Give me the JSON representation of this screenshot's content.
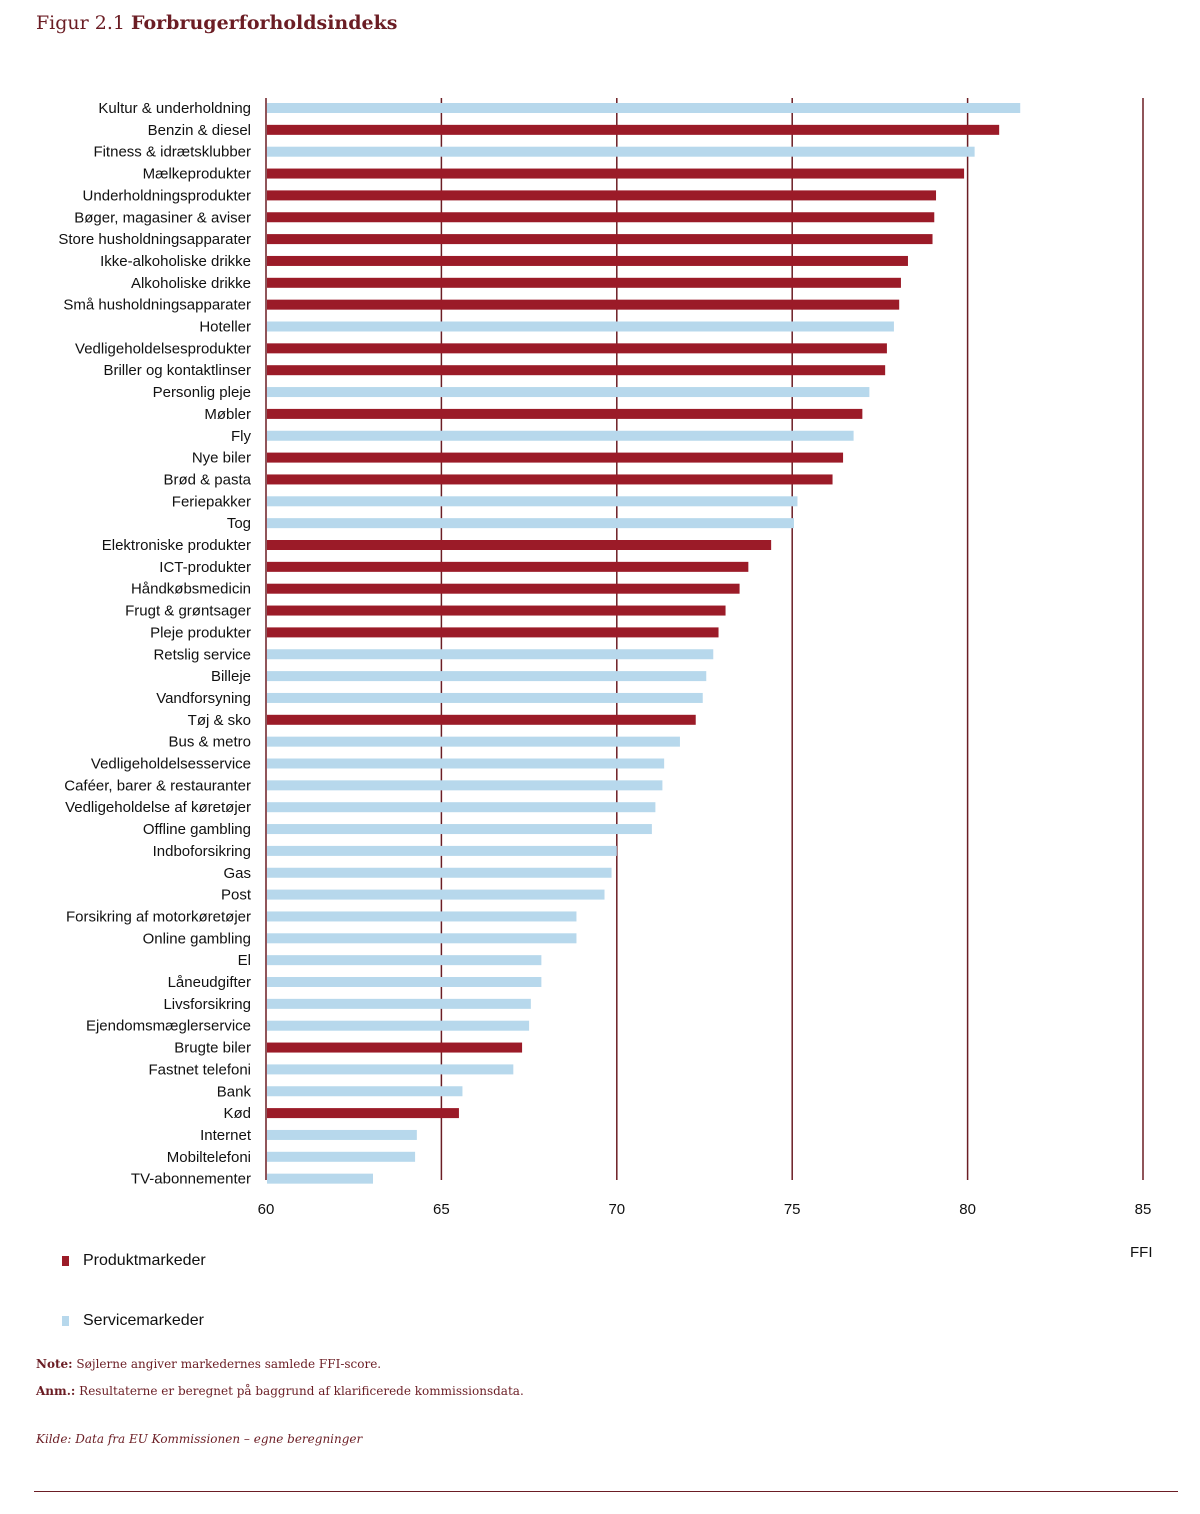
{
  "figure": {
    "number": "Figur 2.1",
    "title": "Forbrugerforholdsindeks"
  },
  "colors": {
    "product": "#9b1b28",
    "service": "#b7d8ec",
    "gridline": "#6b1d24",
    "text": "#111111"
  },
  "chart_data": {
    "type": "bar",
    "orientation": "horizontal",
    "xlim": [
      60,
      85
    ],
    "xticks": [
      60,
      65,
      70,
      75,
      80,
      85
    ],
    "xlabel": "FFI",
    "grid": true,
    "legend_position": "bottom-left",
    "series": [
      {
        "name": "Produktmarkeder",
        "color": "#9b1b28"
      },
      {
        "name": "Servicemarkeder",
        "color": "#b7d8ec"
      }
    ],
    "bars": [
      {
        "label": "Kultur & underholdning",
        "value": 81.5,
        "series": "Servicemarkeder"
      },
      {
        "label": "Benzin & diesel",
        "value": 80.9,
        "series": "Produktmarkeder"
      },
      {
        "label": "Fitness & idrætsklubber",
        "value": 80.2,
        "series": "Servicemarkeder"
      },
      {
        "label": "Mælkeprodukter",
        "value": 79.9,
        "series": "Produktmarkeder"
      },
      {
        "label": "Underholdningsprodukter",
        "value": 79.1,
        "series": "Produktmarkeder"
      },
      {
        "label": "Bøger, magasiner & aviser",
        "value": 79.05,
        "series": "Produktmarkeder"
      },
      {
        "label": "Store husholdningsapparater",
        "value": 79.0,
        "series": "Produktmarkeder"
      },
      {
        "label": "Ikke-alkoholiske drikke",
        "value": 78.3,
        "series": "Produktmarkeder"
      },
      {
        "label": "Alkoholiske drikke",
        "value": 78.1,
        "series": "Produktmarkeder"
      },
      {
        "label": "Små husholdningsapparater",
        "value": 78.05,
        "series": "Produktmarkeder"
      },
      {
        "label": "Hoteller",
        "value": 77.9,
        "series": "Servicemarkeder"
      },
      {
        "label": "Vedligeholdelsesprodukter",
        "value": 77.7,
        "series": "Produktmarkeder"
      },
      {
        "label": "Briller og kontaktlinser",
        "value": 77.65,
        "series": "Produktmarkeder"
      },
      {
        "label": "Personlig pleje",
        "value": 77.2,
        "series": "Servicemarkeder"
      },
      {
        "label": "Møbler",
        "value": 77.0,
        "series": "Produktmarkeder"
      },
      {
        "label": "Fly",
        "value": 76.75,
        "series": "Servicemarkeder"
      },
      {
        "label": "Nye biler",
        "value": 76.45,
        "series": "Produktmarkeder"
      },
      {
        "label": "Brød & pasta",
        "value": 76.15,
        "series": "Produktmarkeder"
      },
      {
        "label": "Feriepakker",
        "value": 75.15,
        "series": "Servicemarkeder"
      },
      {
        "label": "Tog",
        "value": 75.05,
        "series": "Servicemarkeder"
      },
      {
        "label": "Elektroniske produkter",
        "value": 74.4,
        "series": "Produktmarkeder"
      },
      {
        "label": "ICT-produkter",
        "value": 73.75,
        "series": "Produktmarkeder"
      },
      {
        "label": "Håndkøbsmedicin",
        "value": 73.5,
        "series": "Produktmarkeder"
      },
      {
        "label": "Frugt & grøntsager",
        "value": 73.1,
        "series": "Produktmarkeder"
      },
      {
        "label": "Pleje produkter",
        "value": 72.9,
        "series": "Produktmarkeder"
      },
      {
        "label": "Retslig service",
        "value": 72.75,
        "series": "Servicemarkeder"
      },
      {
        "label": "Billeje",
        "value": 72.55,
        "series": "Servicemarkeder"
      },
      {
        "label": "Vandforsyning",
        "value": 72.45,
        "series": "Servicemarkeder"
      },
      {
        "label": "Tøj & sko",
        "value": 72.25,
        "series": "Produktmarkeder"
      },
      {
        "label": "Bus & metro",
        "value": 71.8,
        "series": "Servicemarkeder"
      },
      {
        "label": "Vedligeholdelsesservice",
        "value": 71.35,
        "series": "Servicemarkeder"
      },
      {
        "label": "Caféer, barer & restauranter",
        "value": 71.3,
        "series": "Servicemarkeder"
      },
      {
        "label": "Vedligeholdelse af køretøjer",
        "value": 71.1,
        "series": "Servicemarkeder"
      },
      {
        "label": "Offline gambling",
        "value": 71.0,
        "series": "Servicemarkeder"
      },
      {
        "label": "Indboforsikring",
        "value": 70.0,
        "series": "Servicemarkeder"
      },
      {
        "label": "Gas",
        "value": 69.85,
        "series": "Servicemarkeder"
      },
      {
        "label": "Post",
        "value": 69.65,
        "series": "Servicemarkeder"
      },
      {
        "label": "Forsikring af motorkøretøjer",
        "value": 68.85,
        "series": "Servicemarkeder"
      },
      {
        "label": "Online gambling",
        "value": 68.85,
        "series": "Servicemarkeder"
      },
      {
        "label": "El",
        "value": 67.85,
        "series": "Servicemarkeder"
      },
      {
        "label": "Låneudgifter",
        "value": 67.85,
        "series": "Servicemarkeder"
      },
      {
        "label": "Livsforsikring",
        "value": 67.55,
        "series": "Servicemarkeder"
      },
      {
        "label": "Ejendomsmæglerservice",
        "value": 67.5,
        "series": "Servicemarkeder"
      },
      {
        "label": "Brugte biler",
        "value": 67.3,
        "series": "Produktmarkeder"
      },
      {
        "label": "Fastnet telefoni",
        "value": 67.05,
        "series": "Servicemarkeder"
      },
      {
        "label": "Bank",
        "value": 65.6,
        "series": "Servicemarkeder"
      },
      {
        "label": "Kød",
        "value": 65.5,
        "series": "Produktmarkeder"
      },
      {
        "label": "Internet",
        "value": 64.3,
        "series": "Servicemarkeder"
      },
      {
        "label": "Mobiltelefoni",
        "value": 64.25,
        "series": "Servicemarkeder"
      },
      {
        "label": "TV-abonnementer",
        "value": 63.05,
        "series": "Servicemarkeder"
      }
    ]
  },
  "legend": {
    "product_label": "Produktmarkeder",
    "service_label": "Servicemarkeder"
  },
  "notes": {
    "note_prefix": "Note:",
    "note_text": " Søjlerne angiver markedernes samlede FFI-score.",
    "anm_prefix": "Anm.:",
    "anm_text": " Resultaterne er beregnet på baggrund af klarificerede kommissionsdata.",
    "source": "Kilde: Data fra EU Kommissionen – egne beregninger"
  }
}
